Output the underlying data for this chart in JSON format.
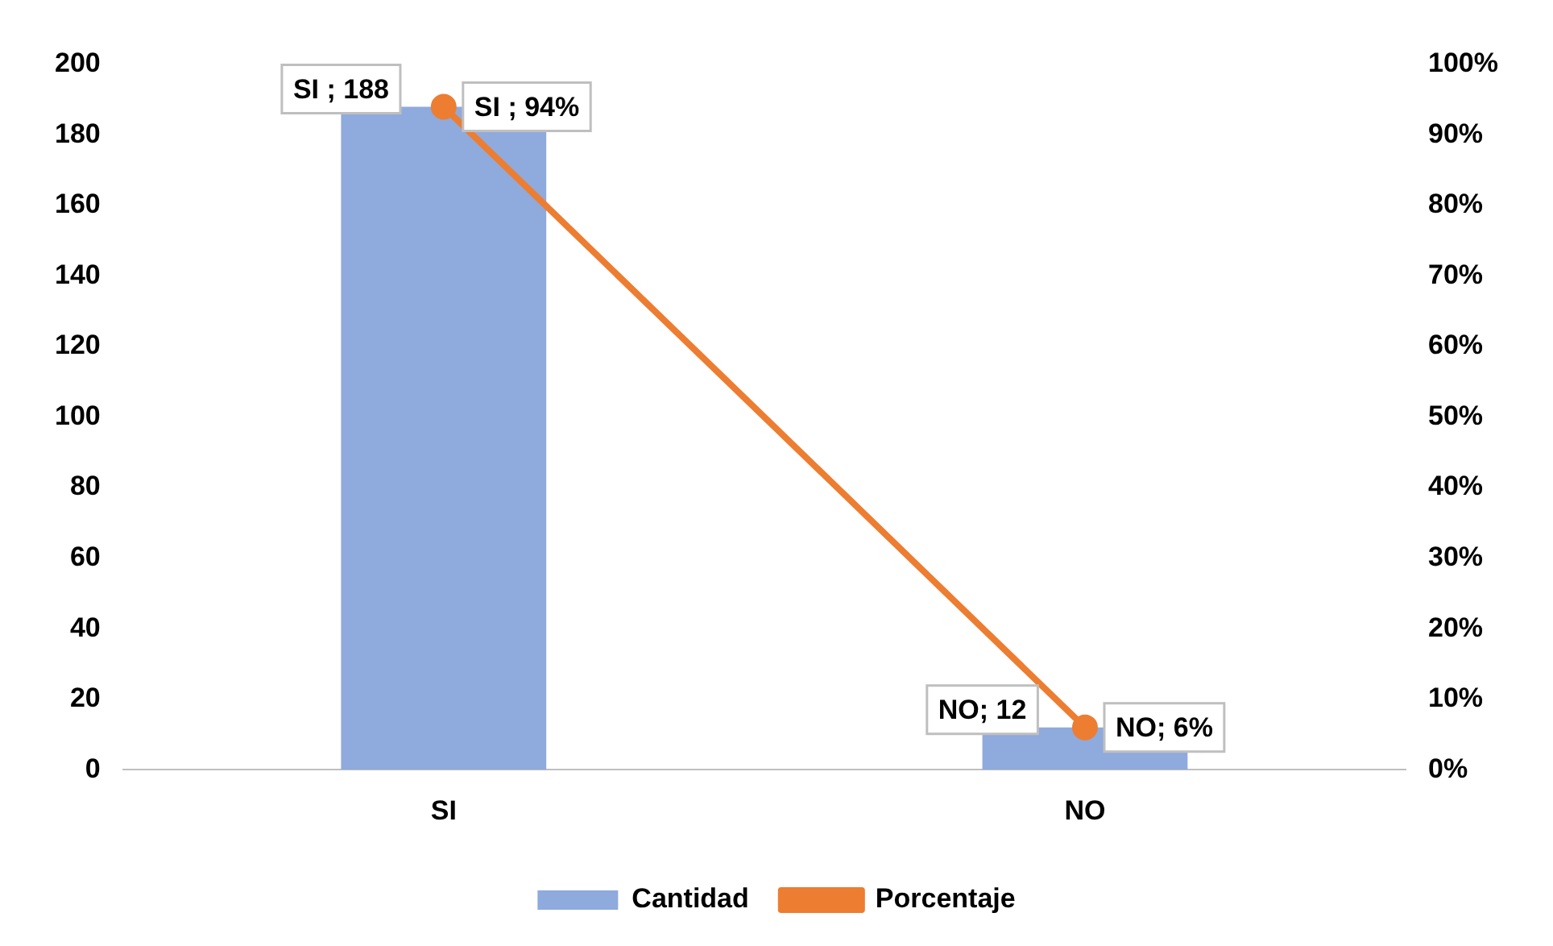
{
  "chart_data": {
    "type": "bar",
    "categories": [
      "SI",
      "NO"
    ],
    "series": [
      {
        "name": "Cantidad",
        "color": "#8faadc",
        "values": [
          188,
          12
        ],
        "value_labels": [
          "SI ; 188",
          "NO; 12"
        ]
      },
      {
        "name": "Porcentaje",
        "type": "line",
        "axis": "y2",
        "color": "#ed7d31",
        "values": [
          94,
          6
        ],
        "value_labels": [
          "SI ; 94%",
          "NO; 6%"
        ]
      }
    ],
    "ylim": [
      0,
      200
    ],
    "yticks": [
      0,
      20,
      40,
      60,
      80,
      100,
      120,
      140,
      160,
      180,
      200
    ],
    "y2lim": [
      0,
      100
    ],
    "y2ticks": [
      {
        "value": 0,
        "label": "0%"
      },
      {
        "value": 10,
        "label": "10%"
      },
      {
        "value": 20,
        "label": "20%"
      },
      {
        "value": 30,
        "label": "30%"
      },
      {
        "value": 40,
        "label": "40%"
      },
      {
        "value": 50,
        "label": "50%"
      },
      {
        "value": 60,
        "label": "60%"
      },
      {
        "value": 70,
        "label": "70%"
      },
      {
        "value": 80,
        "label": "80%"
      },
      {
        "value": 90,
        "label": "90%"
      },
      {
        "value": 100,
        "label": "100%"
      }
    ],
    "grid": false,
    "legend": "bottom",
    "marker": "circle",
    "line_style": "solid"
  }
}
